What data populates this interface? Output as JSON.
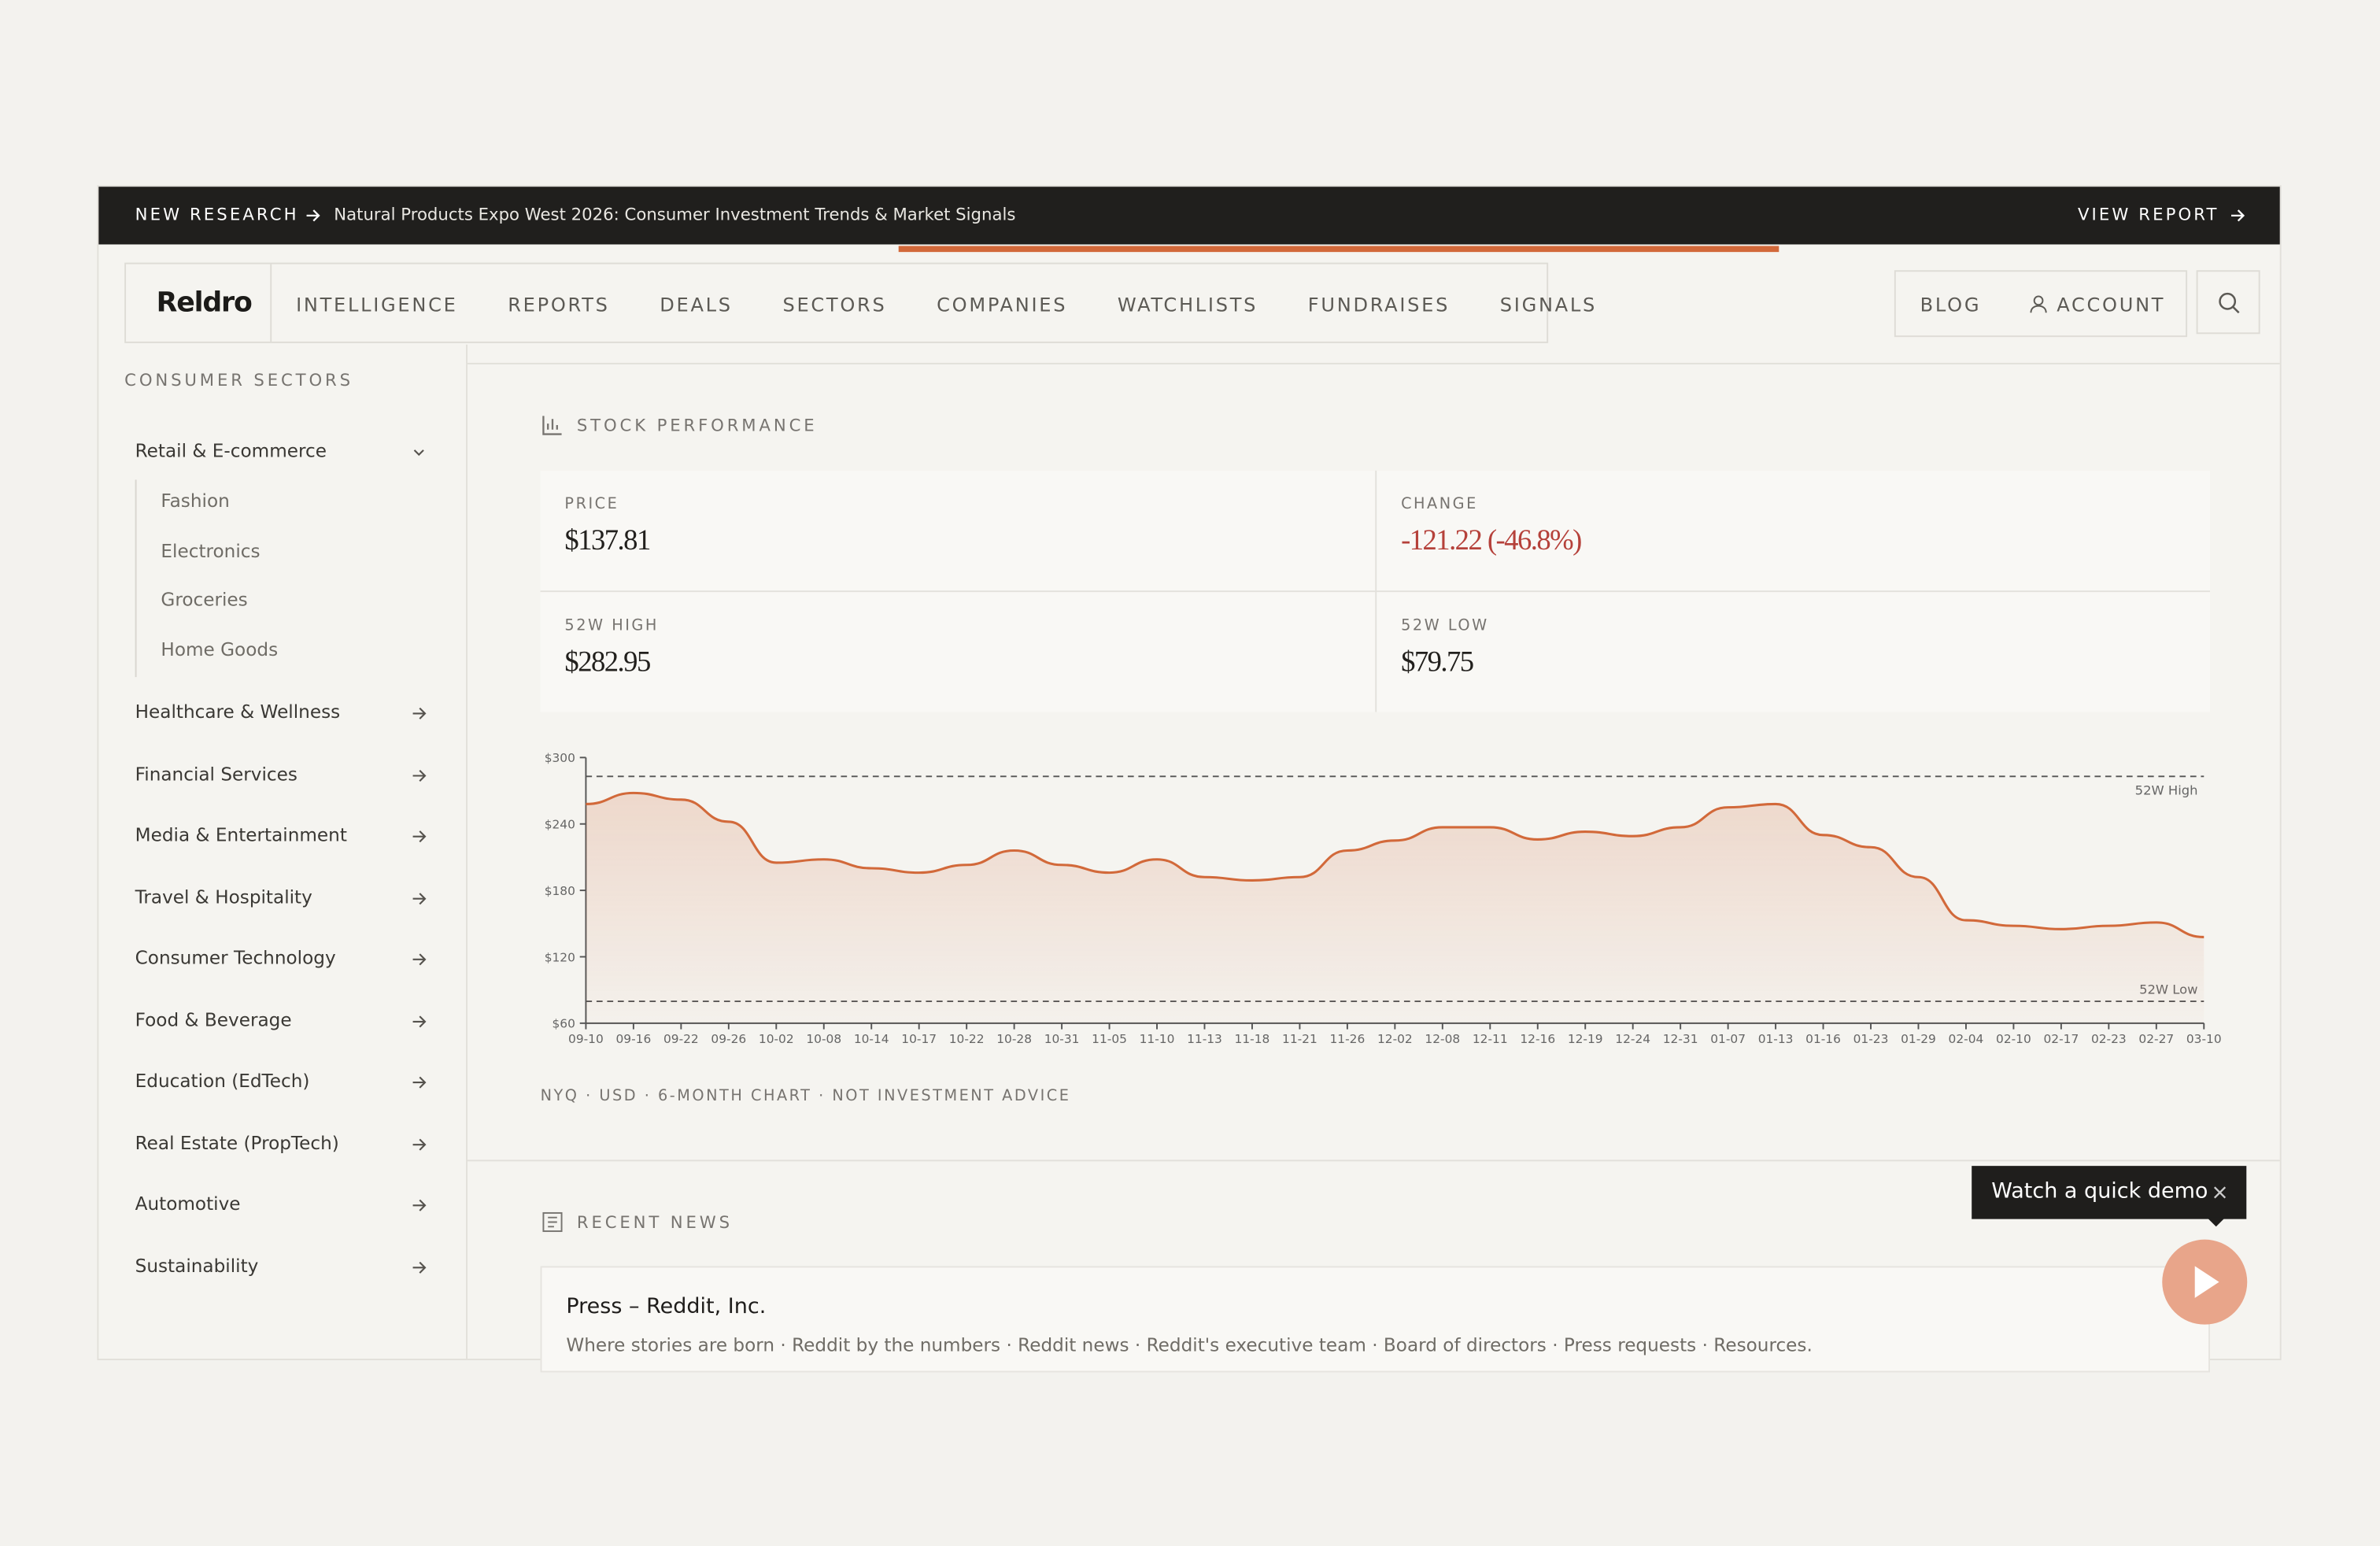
{
  "banner": {
    "tag": "NEW RESEARCH",
    "text": "Natural Products Expo West 2026: Consumer Investment Trends & Market Signals",
    "action": "VIEW REPORT"
  },
  "nav": {
    "logo": "Reldro",
    "items": [
      "INTELLIGENCE",
      "REPORTS",
      "DEALS",
      "SECTORS",
      "COMPANIES",
      "WATCHLISTS",
      "FUNDRAISES",
      "SIGNALS"
    ],
    "blog": "BLOG",
    "account": "ACCOUNT"
  },
  "sidebar": {
    "heading": "CONSUMER SECTORS",
    "sections": [
      {
        "label": "Retail & E-commerce",
        "children": [
          "Fashion",
          "Electronics",
          "Groceries",
          "Home Goods"
        ]
      },
      {
        "label": "Healthcare & Wellness"
      },
      {
        "label": "Financial Services"
      },
      {
        "label": "Media & Entertainment"
      },
      {
        "label": "Travel & Hospitality"
      },
      {
        "label": "Consumer Technology"
      },
      {
        "label": "Food & Beverage"
      },
      {
        "label": "Education (EdTech)"
      },
      {
        "label": "Real Estate (PropTech)"
      },
      {
        "label": "Automotive"
      },
      {
        "label": "Sustainability"
      }
    ]
  },
  "stock": {
    "heading": "STOCK PERFORMANCE",
    "stats": [
      {
        "label": "PRICE",
        "value": "$137.81"
      },
      {
        "label": "CHANGE",
        "value": "-121.22 (-46.8%)"
      },
      {
        "label": "52W HIGH",
        "value": "$282.95"
      },
      {
        "label": "52W LOW",
        "value": "$79.75"
      }
    ],
    "footnote": "NYQ · USD · 6-MONTH CHART · NOT INVESTMENT ADVICE"
  },
  "chart_data": {
    "type": "line",
    "color": "#d2693a",
    "categories": [
      "09-10",
      "09-16",
      "09-22",
      "09-26",
      "10-02",
      "10-08",
      "10-14",
      "10-17",
      "10-22",
      "10-28",
      "10-31",
      "11-05",
      "11-10",
      "11-13",
      "11-18",
      "11-21",
      "11-26",
      "12-02",
      "12-08",
      "12-11",
      "12-16",
      "12-19",
      "12-24",
      "12-31",
      "01-07",
      "01-13",
      "01-16",
      "01-23",
      "01-29",
      "02-04",
      "02-10",
      "02-17",
      "02-23",
      "02-27",
      "03-10"
    ],
    "values": [
      258,
      268,
      262,
      242,
      205,
      208,
      200,
      196,
      203,
      216,
      203,
      196,
      208,
      192,
      189,
      192,
      216,
      225,
      237,
      237,
      226,
      233,
      229,
      237,
      255,
      258,
      230,
      219,
      192,
      153,
      148,
      145,
      148,
      151,
      137.81
    ],
    "ylim": [
      60,
      300
    ],
    "yticks": [
      {
        "value": 60,
        "label": "$60"
      },
      {
        "value": 120,
        "label": "$120"
      },
      {
        "value": 180,
        "label": "$180"
      },
      {
        "value": 240,
        "label": "$240"
      },
      {
        "value": 300,
        "label": "$300"
      }
    ],
    "reference_lines": [
      {
        "label": "52W High",
        "value": 282.95
      },
      {
        "label": "52W Low",
        "value": 79.75
      }
    ]
  },
  "news": {
    "heading": "RECENT NEWS",
    "items": [
      {
        "title": "Press – Reddit, Inc.",
        "snippet": "Where stories are born · Reddit by the numbers · Reddit news · Reddit's executive team · Board of directors · Press requests · Resources."
      }
    ]
  },
  "demo": {
    "label": "Watch a quick demo"
  }
}
